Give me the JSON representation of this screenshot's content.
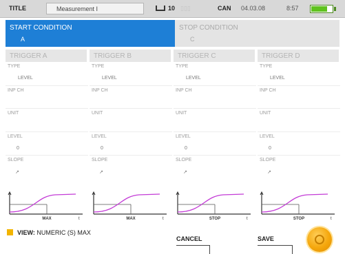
{
  "status_bar": {
    "title_label": "TITLE",
    "title_value": "Measurement I",
    "memory_icon": "storage-icon",
    "memory_value": "10",
    "can_label": "CAN",
    "date": "04.03.08",
    "time": "8:57",
    "battery_icon": "battery-icon",
    "battery_level": 0.75,
    "battery_color": "#5fc21f"
  },
  "conditions": {
    "start": {
      "label": "START CONDITION",
      "value": "A"
    },
    "stop": {
      "label": "STOP CONDITION",
      "value": "C"
    }
  },
  "colors": {
    "accent": "#1e7fd6",
    "curve": "#c33bd6",
    "badge": "#f2b400"
  },
  "triggers": [
    {
      "header": "TRIGGER A",
      "type_label": "TYPE",
      "type_value": "LEVEL",
      "inp_label": "INP CH",
      "unit_label": "UNIT",
      "level_label": "LEVEL",
      "level_value": "0",
      "slope_label": "SLOPE",
      "slope_value": "↗",
      "graph_label": "MAX",
      "graph_end": "t"
    },
    {
      "header": "TRIGGER B",
      "type_label": "TYPE",
      "type_value": "LEVEL",
      "inp_label": "INP CH",
      "unit_label": "UNIT",
      "level_label": "LEVEL",
      "level_value": "0",
      "slope_label": "SLOPE",
      "slope_value": "↗",
      "graph_label": "MAX",
      "graph_end": "t"
    },
    {
      "header": "TRIGGER C",
      "type_label": "TYPE",
      "type_value": "LEVEL",
      "inp_label": "INP CH",
      "unit_label": "UNIT",
      "level_label": "LEVEL",
      "level_value": "0",
      "slope_label": "SLOPE",
      "slope_value": "↗",
      "graph_label": "STOP",
      "graph_end": "t"
    },
    {
      "header": "TRIGGER D",
      "type_label": "TYPE",
      "type_value": "LEVEL",
      "inp_label": "INP CH",
      "unit_label": "UNIT",
      "level_label": "LEVEL",
      "level_value": "0",
      "slope_label": "SLOPE",
      "slope_value": "↗",
      "graph_label": "STOP",
      "graph_end": "t"
    }
  ],
  "footer": {
    "view_label": "VIEW:",
    "view_value": "NUMERIC (S) MAX",
    "cancel_label": "CANCEL",
    "save_label": "SAVE",
    "menu_knob_icon": "menu-knob-icon"
  }
}
